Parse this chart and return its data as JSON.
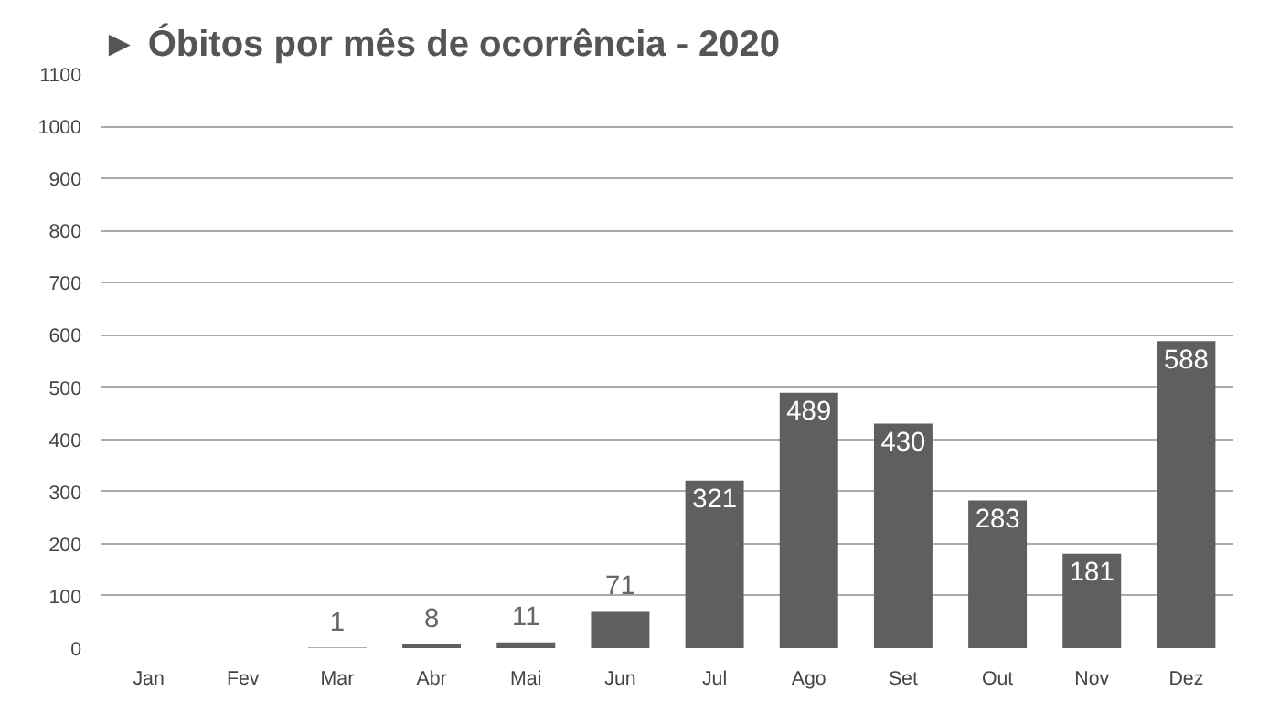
{
  "chart_data": {
    "type": "bar",
    "title": "► Óbitos por mês de ocorrência - 2020",
    "categories": [
      "Jan",
      "Fev",
      "Mar",
      "Abr",
      "Mai",
      "Jun",
      "Jul",
      "Ago",
      "Set",
      "Out",
      "Nov",
      "Dez"
    ],
    "values": [
      null,
      null,
      1,
      8,
      11,
      71,
      321,
      489,
      430,
      283,
      181,
      588
    ],
    "color": "#5f5f5f",
    "data_labels": true,
    "ylim": [
      0,
      1100
    ],
    "yticks": [
      0,
      100,
      200,
      300,
      400,
      500,
      600,
      700,
      800,
      900,
      1000,
      1100
    ],
    "grid": "y"
  }
}
